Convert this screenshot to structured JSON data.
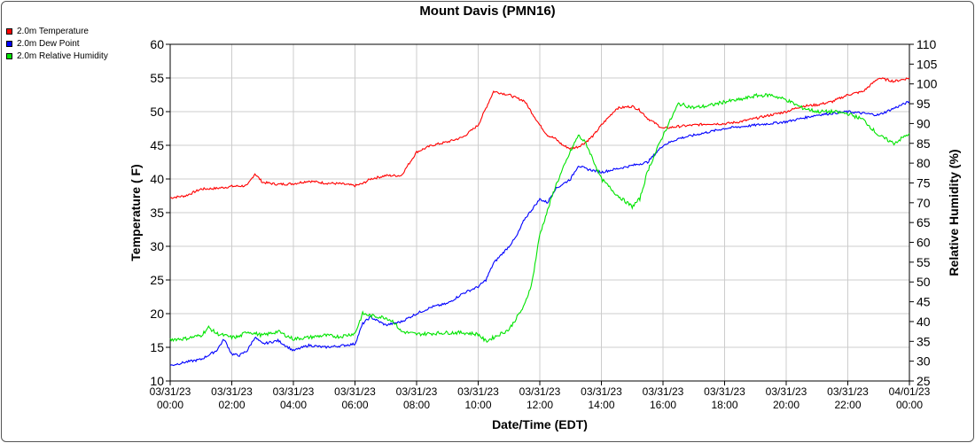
{
  "chart_data": {
    "type": "line",
    "title": "Mount Davis (PMN16)",
    "xlabel": "Date/Time (EDT)",
    "ylabel": "Temperature ( F)",
    "y2label": "Relative Humidity (%)",
    "ylim": [
      10,
      60
    ],
    "y2lim": [
      25,
      110
    ],
    "yticks": [
      "10",
      "15",
      "20",
      "25",
      "30",
      "35",
      "40",
      "45",
      "50",
      "55",
      "60"
    ],
    "y2ticks": [
      "25",
      "30",
      "35",
      "40",
      "45",
      "50",
      "55",
      "60",
      "65",
      "70",
      "75",
      "80",
      "85",
      "90",
      "95",
      "100",
      "105",
      "110"
    ],
    "xticks": [
      {
        "hours": 0,
        "date": "03/31/23",
        "time": "00:00"
      },
      {
        "hours": 2,
        "date": "03/31/23",
        "time": "02:00"
      },
      {
        "hours": 4,
        "date": "03/31/23",
        "time": "04:00"
      },
      {
        "hours": 6,
        "date": "03/31/23",
        "time": "06:00"
      },
      {
        "hours": 8,
        "date": "03/31/23",
        "time": "08:00"
      },
      {
        "hours": 10,
        "date": "03/31/23",
        "time": "10:00"
      },
      {
        "hours": 12,
        "date": "03/31/23",
        "time": "12:00"
      },
      {
        "hours": 14,
        "date": "03/31/23",
        "time": "14:00"
      },
      {
        "hours": 16,
        "date": "03/31/23",
        "time": "16:00"
      },
      {
        "hours": 18,
        "date": "03/31/23",
        "time": "18:00"
      },
      {
        "hours": 20,
        "date": "03/31/23",
        "time": "20:00"
      },
      {
        "hours": 22,
        "date": "03/31/23",
        "time": "22:00"
      },
      {
        "hours": 24,
        "date": "04/01/23",
        "time": "00:00"
      }
    ],
    "grid": true,
    "legend_position": "top-left",
    "series": [
      {
        "name": "2.0m Temperature",
        "color": "#ff0000",
        "axis": "left",
        "x": [
          0,
          0.5,
          1,
          1.5,
          2,
          2.5,
          2.75,
          3,
          3.5,
          4,
          4.5,
          5,
          5.5,
          6,
          6.25,
          6.5,
          7,
          7.5,
          8,
          8.5,
          9,
          9.5,
          10,
          10.25,
          10.5,
          11,
          11.25,
          11.5,
          12,
          12.25,
          12.5,
          12.75,
          13,
          13.25,
          13.5,
          13.75,
          14,
          14.5,
          15,
          15.25,
          15.5,
          16,
          16.5,
          17,
          17.5,
          18,
          18.5,
          19,
          19.5,
          20,
          20.5,
          21,
          21.5,
          22,
          22.5,
          23,
          23.5,
          24
        ],
        "y": [
          37.2,
          37.5,
          38.5,
          38.6,
          38.9,
          39,
          40.8,
          39.5,
          39.2,
          39.3,
          39.7,
          39.4,
          39.3,
          39.0,
          39.3,
          40.0,
          40.5,
          40.5,
          44,
          45,
          45.5,
          46.2,
          48,
          50.5,
          53,
          52.5,
          52,
          51.6,
          48,
          46.5,
          46,
          45,
          44.5,
          44.8,
          45.5,
          46.5,
          48,
          50.5,
          50.8,
          50.2,
          49,
          47.5,
          47.8,
          48,
          48.2,
          48.2,
          48.5,
          49,
          49.5,
          50,
          50.8,
          51,
          51.5,
          52.5,
          53,
          55,
          54.5,
          55
        ]
      },
      {
        "name": "2.0m Dew Point",
        "color": "#0000ff",
        "axis": "left",
        "x": [
          0,
          0.5,
          1,
          1.5,
          1.75,
          2,
          2.25,
          2.5,
          2.75,
          3,
          3.5,
          4,
          4.5,
          5,
          5.5,
          6,
          6.25,
          6.5,
          7,
          7.5,
          8,
          8.5,
          9,
          9.5,
          10,
          10.25,
          10.5,
          11,
          11.25,
          11.5,
          12,
          12.25,
          12.5,
          13,
          13.25,
          13.5,
          14,
          14.5,
          15,
          15.5,
          16,
          16.5,
          17,
          17.5,
          18,
          19,
          20,
          21,
          22,
          23,
          23.5,
          24
        ],
        "y": [
          12.3,
          12.8,
          13.2,
          14.5,
          16.2,
          14,
          13.8,
          14.5,
          16.5,
          15.5,
          16,
          14.5,
          15.3,
          15,
          15.2,
          15.5,
          18.5,
          19.5,
          18.3,
          18.8,
          20,
          21,
          21.5,
          23,
          24,
          25,
          27.5,
          30,
          31.5,
          34,
          37,
          36.5,
          38.5,
          40,
          42,
          41.5,
          41,
          41.5,
          42,
          42.5,
          45,
          46,
          46.5,
          47,
          47.5,
          48,
          48.5,
          49.5,
          50,
          49.5,
          50.5,
          51.5
        ]
      },
      {
        "name": "2.0m Relative Humidity",
        "color": "#00e400",
        "axis": "right",
        "x": [
          0,
          0.5,
          1,
          1.25,
          1.5,
          2,
          2.25,
          2.5,
          3,
          3.5,
          4,
          4.5,
          5,
          5.5,
          6,
          6.25,
          6.5,
          7,
          7.25,
          7.5,
          8,
          8.5,
          9,
          9.5,
          10,
          10.25,
          10.5,
          11,
          11.5,
          11.75,
          12,
          12.25,
          12.5,
          13,
          13.25,
          13.5,
          14,
          14.5,
          15,
          15.25,
          15.5,
          16,
          16.5,
          17,
          17.5,
          18,
          18.5,
          19,
          19.5,
          20,
          20.5,
          21,
          21.5,
          22,
          22.5,
          23,
          23.5,
          24
        ],
        "y": [
          35.5,
          35.7,
          36.5,
          38.5,
          37,
          36,
          36.2,
          37.5,
          36.5,
          37.5,
          35.6,
          36,
          36.5,
          36.2,
          37,
          42,
          41.5,
          41,
          40,
          37.5,
          36.8,
          37,
          37.2,
          37.2,
          36.8,
          35,
          36,
          38,
          44,
          50,
          62,
          68,
          74,
          83,
          87,
          85,
          76,
          72,
          69,
          71,
          78,
          87,
          95,
          94,
          94.5,
          95.5,
          96,
          97,
          97.2,
          96,
          94,
          93,
          93,
          92.5,
          91,
          87,
          85,
          87.5
        ]
      }
    ]
  }
}
